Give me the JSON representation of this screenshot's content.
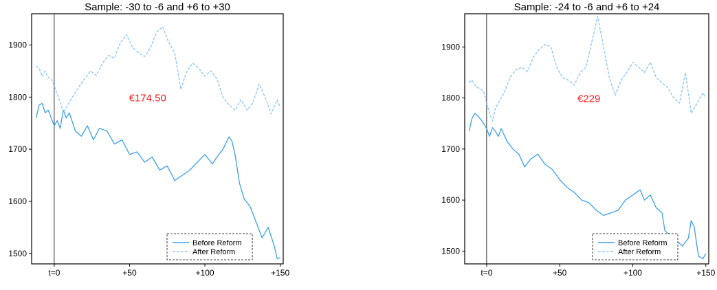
{
  "colors": {
    "before": "#3a9ff0",
    "after": "#8fc9f6",
    "annotation": "#ff1a1a",
    "axis": "#000000"
  },
  "chart_data": [
    {
      "type": "line",
      "title": "Sample: -30 to -6 and +6 to +30",
      "xlabel": "",
      "ylabel": "",
      "xlim": [
        -15,
        152
      ],
      "ylim": [
        1480,
        1960
      ],
      "x_ticks": [
        0,
        50,
        100,
        150
      ],
      "x_tick_labels": [
        "t=0",
        "+50",
        "+100",
        "+150"
      ],
      "y_ticks": [
        1500,
        1600,
        1700,
        1800,
        1900
      ],
      "y_tick_labels": [
        "1500",
        "1600",
        "1700",
        "1800",
        "1900"
      ],
      "vline_x": 0,
      "annotation": {
        "text": "€174.50",
        "x": 62,
        "y": 1800
      },
      "legend_position": "bottom-right",
      "legend": [
        "Before Reform",
        "After Reform"
      ],
      "series": [
        {
          "name": "Before Reform",
          "style": "solid",
          "x": [
            -12,
            -10,
            -8,
            -6,
            -4,
            -2,
            0,
            2,
            4,
            6,
            8,
            10,
            14,
            18,
            22,
            26,
            30,
            35,
            40,
            45,
            50,
            55,
            60,
            65,
            70,
            75,
            80,
            85,
            90,
            95,
            100,
            105,
            108,
            112,
            116,
            118,
            120,
            123,
            126,
            130,
            134,
            138,
            142,
            146,
            148,
            150
          ],
          "y": [
            1760,
            1785,
            1788,
            1770,
            1775,
            1760,
            1745,
            1755,
            1740,
            1775,
            1760,
            1770,
            1735,
            1725,
            1745,
            1718,
            1740,
            1735,
            1710,
            1718,
            1690,
            1695,
            1675,
            1685,
            1660,
            1668,
            1640,
            1650,
            1660,
            1675,
            1690,
            1672,
            1685,
            1700,
            1724,
            1715,
            1690,
            1635,
            1605,
            1590,
            1560,
            1530,
            1550,
            1515,
            1490,
            1492
          ]
        },
        {
          "name": "After Reform",
          "style": "dashed",
          "x": [
            -12,
            -10,
            -8,
            -6,
            -4,
            -2,
            0,
            2,
            4,
            6,
            8,
            12,
            16,
            20,
            24,
            28,
            32,
            36,
            40,
            44,
            48,
            52,
            56,
            60,
            64,
            68,
            72,
            76,
            80,
            84,
            88,
            92,
            96,
            100,
            104,
            108,
            112,
            116,
            120,
            124,
            128,
            132,
            136,
            140,
            144,
            148,
            150
          ],
          "y": [
            1860,
            1855,
            1840,
            1850,
            1838,
            1835,
            1822,
            1805,
            1790,
            1770,
            1780,
            1800,
            1818,
            1835,
            1850,
            1842,
            1865,
            1880,
            1875,
            1905,
            1920,
            1895,
            1885,
            1878,
            1895,
            1925,
            1935,
            1905,
            1885,
            1815,
            1850,
            1865,
            1855,
            1840,
            1850,
            1835,
            1800,
            1785,
            1775,
            1795,
            1775,
            1790,
            1825,
            1800,
            1768,
            1795,
            1780
          ]
        }
      ]
    },
    {
      "type": "line",
      "title": "Sample: -24 to -6 and +6 to +24",
      "xlabel": "",
      "ylabel": "",
      "xlim": [
        -15,
        152
      ],
      "ylim": [
        1475,
        1965
      ],
      "x_ticks": [
        0,
        50,
        100,
        150
      ],
      "x_tick_labels": [
        "t=0",
        "+50",
        "+100",
        "+150"
      ],
      "y_ticks": [
        1500,
        1600,
        1700,
        1800,
        1900
      ],
      "y_tick_labels": [
        "1500",
        "1600",
        "1700",
        "1800",
        "1900"
      ],
      "vline_x": 0,
      "annotation": {
        "text": "€229",
        "x": 70,
        "y": 1800
      },
      "legend_position": "bottom-right",
      "legend": [
        "Before Reform",
        "After Reform"
      ],
      "series": [
        {
          "name": "Before Reform",
          "style": "solid",
          "x": [
            -12,
            -10,
            -8,
            -6,
            -4,
            -2,
            0,
            2,
            4,
            6,
            8,
            10,
            14,
            18,
            22,
            26,
            30,
            35,
            40,
            45,
            50,
            55,
            60,
            65,
            70,
            75,
            80,
            85,
            90,
            95,
            100,
            105,
            108,
            112,
            116,
            120,
            122,
            124,
            126,
            130,
            134,
            138,
            140,
            142,
            145,
            148,
            150
          ],
          "y": [
            1735,
            1760,
            1770,
            1765,
            1758,
            1750,
            1740,
            1725,
            1742,
            1735,
            1725,
            1740,
            1715,
            1700,
            1690,
            1665,
            1680,
            1690,
            1670,
            1660,
            1640,
            1625,
            1615,
            1600,
            1595,
            1580,
            1570,
            1575,
            1580,
            1600,
            1610,
            1620,
            1600,
            1610,
            1585,
            1575,
            1540,
            1535,
            1530,
            1520,
            1510,
            1525,
            1560,
            1548,
            1490,
            1485,
            1495
          ]
        },
        {
          "name": "After Reform",
          "style": "dashed",
          "x": [
            -12,
            -10,
            -8,
            -6,
            -4,
            -2,
            0,
            2,
            4,
            6,
            8,
            12,
            16,
            20,
            24,
            28,
            32,
            36,
            40,
            44,
            48,
            52,
            56,
            60,
            64,
            68,
            72,
            76,
            80,
            84,
            88,
            92,
            96,
            100,
            104,
            108,
            112,
            116,
            120,
            124,
            128,
            132,
            136,
            140,
            144,
            148,
            150
          ],
          "y": [
            1830,
            1835,
            1825,
            1820,
            1818,
            1812,
            1790,
            1770,
            1755,
            1780,
            1790,
            1810,
            1840,
            1855,
            1860,
            1852,
            1880,
            1895,
            1905,
            1900,
            1860,
            1840,
            1835,
            1825,
            1850,
            1860,
            1910,
            1960,
            1900,
            1840,
            1805,
            1835,
            1850,
            1870,
            1860,
            1850,
            1870,
            1840,
            1830,
            1820,
            1800,
            1790,
            1850,
            1770,
            1790,
            1810,
            1800
          ]
        }
      ]
    }
  ]
}
